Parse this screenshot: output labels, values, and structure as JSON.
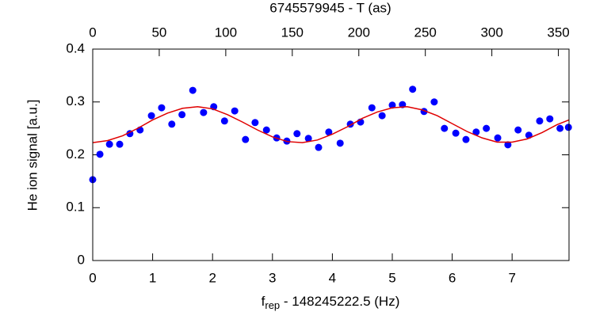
{
  "chart_data": {
    "type": "scatter",
    "xlabel": {
      "base": "f",
      "sub": "rep",
      "rest": " - 148245222.5 (Hz)"
    },
    "ylabel": "He ion signal [a.u.]",
    "x2label": "6745579945 - T (as)",
    "xlim": [
      0,
      7.95
    ],
    "xticks": [
      0,
      1,
      2,
      3,
      4,
      5,
      6,
      7
    ],
    "x2lim": [
      0,
      358
    ],
    "x2ticks": [
      0,
      50,
      100,
      150,
      200,
      250,
      300,
      350
    ],
    "ylim": [
      0,
      0.4
    ],
    "yticks": [
      0,
      0.1,
      0.2,
      0.3,
      0.4
    ],
    "series": [
      {
        "type": "scatter",
        "color": "#0000ff",
        "x": [
          0,
          0.12,
          0.28,
          0.45,
          0.62,
          0.79,
          0.98,
          1.15,
          1.32,
          1.49,
          1.67,
          1.85,
          2.02,
          2.2,
          2.37,
          2.55,
          2.71,
          2.9,
          3.07,
          3.24,
          3.41,
          3.6,
          3.77,
          3.94,
          4.13,
          4.3,
          4.47,
          4.66,
          4.83,
          5.0,
          5.17,
          5.34,
          5.53,
          5.7,
          5.87,
          6.06,
          6.23,
          6.4,
          6.57,
          6.76,
          6.93,
          7.1,
          7.28,
          7.46,
          7.63,
          7.8,
          7.94
        ],
        "values": [
          0.153,
          0.201,
          0.22,
          0.22,
          0.24,
          0.247,
          0.274,
          0.289,
          0.258,
          0.276,
          0.322,
          0.28,
          0.291,
          0.264,
          0.283,
          0.229,
          0.261,
          0.247,
          0.232,
          0.226,
          0.24,
          0.231,
          0.214,
          0.243,
          0.222,
          0.258,
          0.262,
          0.289,
          0.274,
          0.294,
          0.295,
          0.324,
          0.282,
          0.3,
          0.25,
          0.241,
          0.229,
          0.243,
          0.25,
          0.232,
          0.219,
          0.247,
          0.237,
          0.264,
          0.268,
          0.25,
          0.252
        ]
      },
      {
        "type": "line",
        "color": "#e00000",
        "x": [
          0,
          0.25,
          0.5,
          0.75,
          1.0,
          1.25,
          1.5,
          1.75,
          2.0,
          2.25,
          2.5,
          2.75,
          3.0,
          3.25,
          3.5,
          3.75,
          4.0,
          4.25,
          4.5,
          4.75,
          5.0,
          5.25,
          5.5,
          5.75,
          6.0,
          6.25,
          6.5,
          6.75,
          7.0,
          7.25,
          7.5,
          7.75,
          7.95
        ],
        "values": [
          0.223,
          0.227,
          0.236,
          0.25,
          0.266,
          0.279,
          0.288,
          0.291,
          0.287,
          0.276,
          0.262,
          0.247,
          0.234,
          0.225,
          0.223,
          0.228,
          0.239,
          0.253,
          0.269,
          0.281,
          0.289,
          0.291,
          0.285,
          0.274,
          0.259,
          0.244,
          0.232,
          0.224,
          0.224,
          0.23,
          0.242,
          0.257,
          0.266
        ]
      }
    ]
  }
}
